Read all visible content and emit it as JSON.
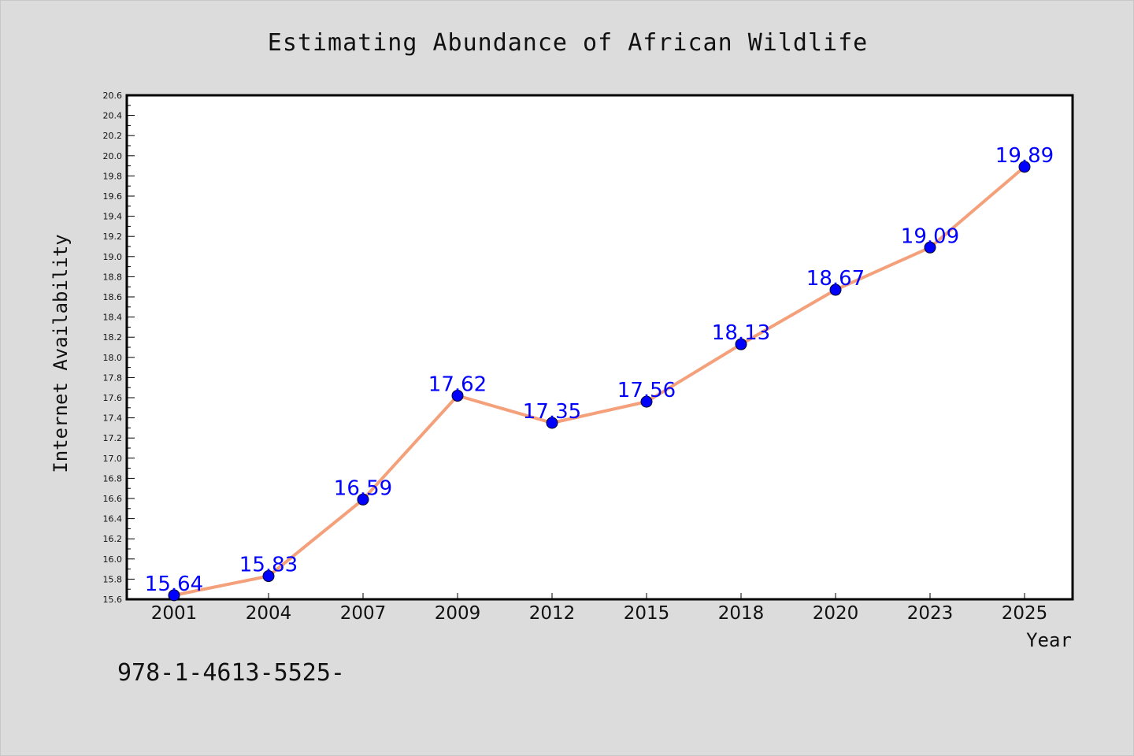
{
  "chart_data": {
    "type": "line",
    "title": "Estimating Abundance of African Wildlife",
    "xlabel": "Year",
    "ylabel": "Internet Availability",
    "categories": [
      "2001",
      "2004",
      "2007",
      "2009",
      "2012",
      "2015",
      "2018",
      "2020",
      "2023",
      "2025"
    ],
    "series": [
      {
        "values": [
          15.64,
          15.83,
          16.59,
          17.62,
          17.35,
          17.56,
          18.13,
          18.67,
          19.09,
          19.89
        ],
        "labels": [
          "15.64",
          "15.83",
          "16.59",
          "17.62",
          "17.35",
          "17.56",
          "18.13",
          "18.67",
          "19.09",
          "19.89"
        ],
        "line_color": "#f4a07a",
        "marker_color": "#0000ff"
      }
    ],
    "ylim": [
      15.6,
      20.6
    ],
    "yticks": [
      "15.6",
      "15.8",
      "16.0",
      "16.2",
      "16.4",
      "16.6",
      "16.8",
      "17.0",
      "17.2",
      "17.4",
      "17.6",
      "17.8",
      "18.0",
      "18.2",
      "18.4",
      "18.6",
      "18.8",
      "19.0",
      "19.2",
      "19.4",
      "19.6",
      "19.8",
      "20.0",
      "20.2",
      "20.4",
      "20.6"
    ],
    "grid": false,
    "legend": "none"
  },
  "footer_text": "978-1-4613-5525-"
}
